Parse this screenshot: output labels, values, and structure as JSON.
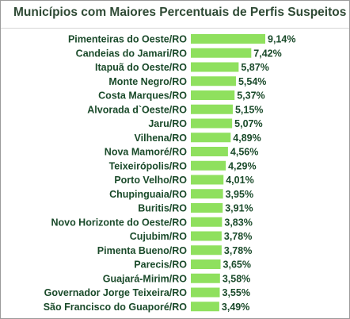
{
  "chart_data": {
    "type": "bar",
    "orientation": "horizontal",
    "title": "Municípios com Maiores Percentuais de Perfis Suspeitos",
    "categories": [
      "Pimenteiras do Oeste/RO",
      "Candeias do Jamari/RO",
      "Itapuã do Oeste/RO",
      "Monte Negro/RO",
      "Costa Marques/RO",
      "Alvorada d`Oeste/RO",
      "Jaru/RO",
      "Vilhena/RO",
      "Nova Mamoré/RO",
      "Teixeirópolis/RO",
      "Porto Velho/RO",
      "Chupinguaia/RO",
      "Buritis/RO",
      "Novo Horizonte do Oeste/RO",
      "Cujubim/RO",
      "Pimenta Bueno/RO",
      "Parecis/RO",
      "Guajará-Mirim/RO",
      "Governador Jorge Teixeira/RO",
      "São Francisco do Guaporé/RO"
    ],
    "values": [
      9.14,
      7.42,
      5.87,
      5.54,
      5.37,
      5.15,
      5.07,
      4.89,
      4.56,
      4.29,
      4.01,
      3.95,
      3.91,
      3.83,
      3.78,
      3.78,
      3.65,
      3.58,
      3.55,
      3.49
    ],
    "value_labels": [
      "9,14%",
      "7,42%",
      "5,87%",
      "5,54%",
      "5,37%",
      "5,15%",
      "5,07%",
      "4,89%",
      "4,56%",
      "4,29%",
      "4,01%",
      "3,95%",
      "3,91%",
      "3,83%",
      "3,78%",
      "3,78%",
      "3,65%",
      "3,58%",
      "3,55%",
      "3,49%"
    ],
    "xlim": [
      0,
      9.14
    ],
    "grid": false,
    "legend": "none",
    "bar_color": "#8fe05e",
    "text_color": "#1a4a2a"
  }
}
